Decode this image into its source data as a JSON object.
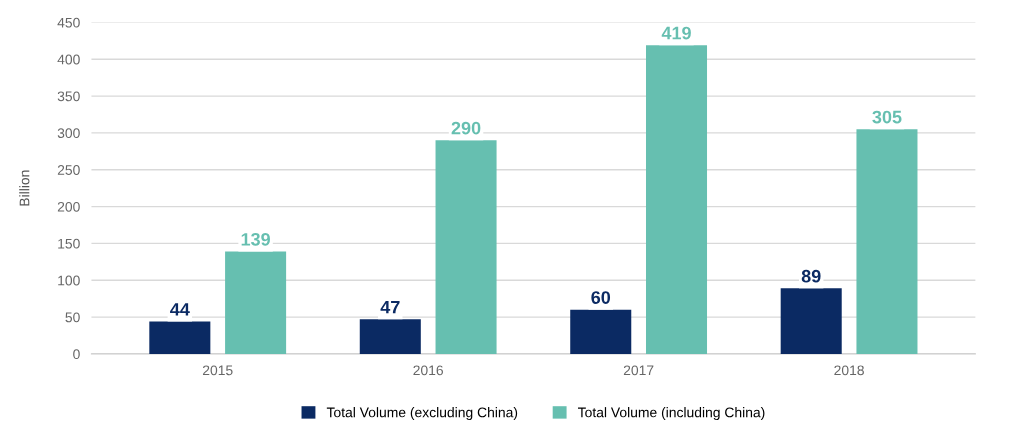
{
  "chart_data": {
    "type": "bar",
    "ylabel": "Billion",
    "categories": [
      "2015",
      "2016",
      "2017",
      "2018"
    ],
    "series": [
      {
        "name": "Total Volume (excluding China)",
        "color": "#0b2a63",
        "values": [
          44,
          47,
          60,
          89
        ]
      },
      {
        "name": "Total Volume (including China)",
        "color": "#66bfb0",
        "values": [
          139,
          290,
          419,
          305
        ]
      }
    ],
    "ylim": [
      0,
      450
    ],
    "yticks": [
      0,
      50,
      100,
      150,
      200,
      250,
      300,
      350,
      400,
      450
    ],
    "grid": "y",
    "legend": "bottom",
    "data_labels": true
  }
}
